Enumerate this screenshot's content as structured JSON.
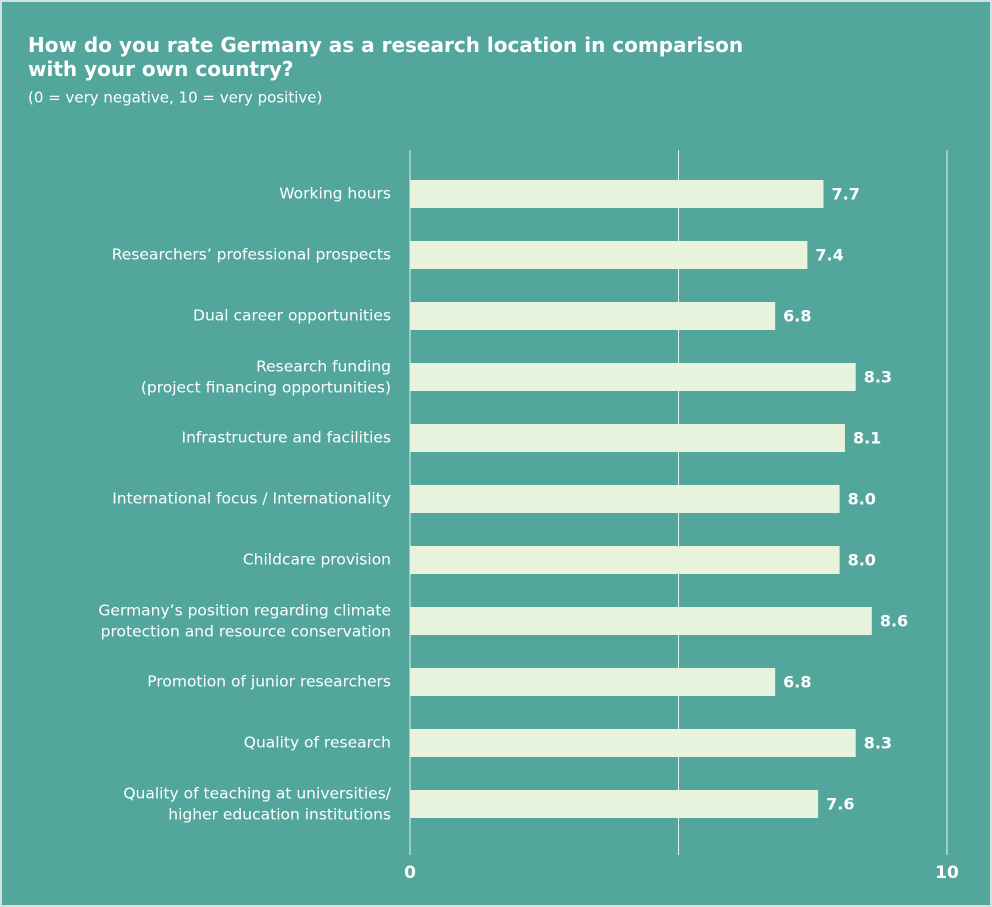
{
  "chart_data": {
    "type": "bar",
    "orientation": "horizontal",
    "title": "How do you rate Germany as a research location in comparison\nwith your own country?",
    "subtitle": "(0 = very negative, 10 = very positive)",
    "categories": [
      "Working hours",
      "Researchers’ professional prospects",
      "Dual career opportunities",
      "Research funding\n(project financing opportunities)",
      "Infrastructure and facilities",
      "International focus / Internationality",
      "Childcare provision",
      "Germany’s position regarding climate\nprotection and resource conservation",
      "Promotion of junior researchers",
      "Quality of research",
      "Quality of teaching at universities/\nhigher education institutions"
    ],
    "values": [
      7.7,
      7.4,
      6.8,
      8.3,
      8.1,
      8.0,
      8.0,
      8.6,
      6.8,
      8.3,
      7.6
    ],
    "value_labels": [
      "7.7",
      "7.4",
      "6.8",
      "8.3",
      "8.1",
      "8.0",
      "8.0",
      "8.6",
      "6.8",
      "8.3",
      "7.6"
    ],
    "color": "#e8f3de",
    "background": "#52a69c",
    "xlim": [
      0,
      10
    ],
    "xticks": [
      0,
      10
    ],
    "grid_lines": [
      0,
      5,
      10
    ]
  }
}
